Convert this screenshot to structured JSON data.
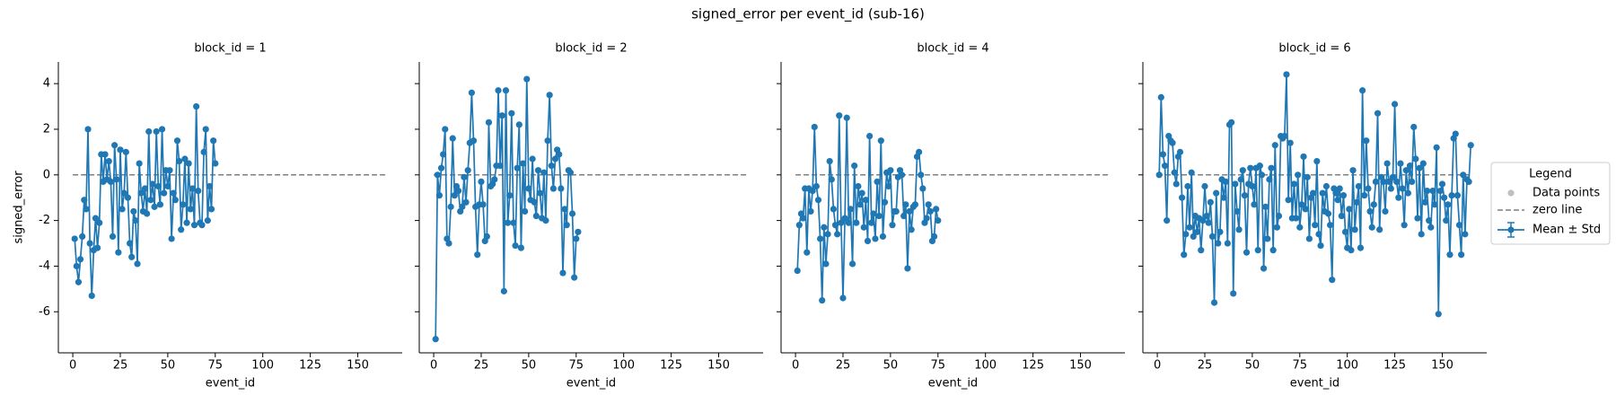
{
  "title": "signed_error per event_id (sub-16)",
  "legend": {
    "title": "Legend",
    "entries": [
      {
        "name": "Data points",
        "color": "#bfbfbf"
      },
      {
        "name": "zero line",
        "color": "#7f7f7f"
      },
      {
        "name": "Mean ± Std",
        "color": "#1f77b4"
      }
    ]
  },
  "chart_data": [
    {
      "type": "line",
      "title": "block_id = 1",
      "xlabel": "event_id",
      "ylabel": "signed_error",
      "color": "#1f77b4",
      "x": [
        1,
        2,
        3,
        4,
        5,
        6,
        7,
        8,
        9,
        10,
        11,
        12,
        13,
        14,
        15,
        16,
        17,
        18,
        19,
        20,
        21,
        22,
        23,
        24,
        25,
        26,
        27,
        28,
        29,
        30,
        31,
        32,
        33,
        34,
        35,
        36,
        37,
        38,
        39,
        40,
        41,
        42,
        43,
        44,
        45,
        46,
        47,
        48,
        49,
        50,
        51,
        52,
        53,
        54,
        55,
        56,
        57,
        58,
        59,
        60,
        61,
        62,
        63,
        64,
        65,
        66,
        67,
        68,
        69,
        70,
        71,
        72,
        73,
        74,
        75
      ],
      "values": [
        -2.8,
        -4.0,
        -4.7,
        -3.7,
        -2.7,
        -1.1,
        -1.5,
        2.0,
        -3.0,
        -5.3,
        -3.3,
        -1.9,
        -3.2,
        -2.1,
        0.9,
        -0.3,
        0.9,
        -0.2,
        0.6,
        -0.3,
        -2.7,
        1.3,
        -0.2,
        -3.4,
        1.1,
        -1.5,
        -0.8,
        1.0,
        -1.0,
        -3.0,
        -3.6,
        -1.6,
        -2.0,
        -3.9,
        0.5,
        -0.8,
        -1.6,
        -0.6,
        -1.7,
        1.9,
        -1.1,
        -0.4,
        -1.4,
        1.9,
        -0.5,
        -1.3,
        2.0,
        -0.8,
        0.2,
        -0.5,
        0.2,
        -2.8,
        -0.8,
        -1.1,
        1.5,
        0.6,
        -2.4,
        -1.3,
        0.7,
        -2.1,
        0.5,
        -1.5,
        -0.6,
        -2.2,
        3.0,
        -0.7,
        -2.1,
        -2.2,
        1.0,
        2.0,
        -2.0,
        -0.5,
        -1.5,
        1.5,
        0.5
      ],
      "xlim": [
        -7.6,
        173.4
      ],
      "ylim": [
        -7.8,
        4.95
      ],
      "xticks": [
        0,
        25,
        50,
        75,
        100,
        125,
        150
      ],
      "yticks": [
        -6,
        -4,
        -2,
        0,
        2,
        4
      ],
      "zero_line": {
        "y": 0,
        "x": [
          0,
          165
        ]
      }
    },
    {
      "type": "line",
      "title": "block_id = 2",
      "xlabel": "event_id",
      "color": "#1f77b4",
      "x": [
        1,
        2,
        3,
        4,
        5,
        6,
        7,
        8,
        9,
        10,
        11,
        12,
        13,
        14,
        15,
        16,
        17,
        18,
        19,
        20,
        21,
        22,
        23,
        24,
        25,
        26,
        27,
        28,
        29,
        30,
        31,
        32,
        33,
        34,
        35,
        36,
        37,
        38,
        39,
        40,
        41,
        42,
        43,
        44,
        45,
        46,
        47,
        48,
        49,
        50,
        51,
        52,
        53,
        54,
        55,
        56,
        57,
        58,
        59,
        60,
        61,
        62,
        63,
        64,
        65,
        66,
        67,
        68,
        69,
        70,
        71,
        72,
        73,
        74,
        75,
        76
      ],
      "values": [
        -7.2,
        0.0,
        -0.9,
        0.3,
        0.9,
        2.0,
        -2.8,
        -3.0,
        -1.4,
        1.6,
        -0.9,
        -0.5,
        -0.7,
        -1.6,
        -1.4,
        -0.1,
        -1.2,
        0.2,
        1.4,
        3.6,
        1.5,
        -1.4,
        -3.5,
        -1.3,
        -0.3,
        -1.3,
        -2.9,
        -2.7,
        2.3,
        -0.5,
        -0.4,
        -0.2,
        0.4,
        3.7,
        0.4,
        2.6,
        -5.1,
        3.7,
        -2.1,
        -0.9,
        2.7,
        -2.1,
        -3.1,
        0.3,
        2.2,
        -3.2,
        0.5,
        -1.6,
        4.2,
        -0.6,
        -1.1,
        0.7,
        -1.2,
        -1.8,
        0.2,
        -0.8,
        -1.9,
        0.1,
        -2.0,
        1.5,
        3.5,
        0.4,
        -0.6,
        0.7,
        1.1,
        0.9,
        -0.6,
        -4.3,
        -1.5,
        -2.2,
        0.2,
        0.1,
        -1.7,
        -4.5,
        -2.8,
        -2.5
      ],
      "xlim": [
        -7.6,
        173.4
      ],
      "ylim": [
        -7.8,
        4.95
      ],
      "xticks": [
        0,
        25,
        50,
        75,
        100,
        125,
        150
      ],
      "yticks": [
        -6,
        -4,
        -2,
        0,
        2,
        4
      ],
      "zero_line": {
        "y": 0,
        "x": [
          0,
          165
        ]
      }
    },
    {
      "type": "line",
      "title": "block_id = 4",
      "xlabel": "event_id",
      "color": "#1f77b4",
      "x": [
        1,
        2,
        3,
        4,
        5,
        6,
        7,
        8,
        9,
        10,
        11,
        12,
        13,
        14,
        15,
        16,
        17,
        18,
        19,
        20,
        21,
        22,
        23,
        24,
        25,
        26,
        27,
        28,
        29,
        30,
        31,
        32,
        33,
        34,
        35,
        36,
        37,
        38,
        39,
        40,
        41,
        42,
        43,
        44,
        45,
        46,
        47,
        48,
        49,
        50,
        51,
        52,
        53,
        54,
        55,
        56,
        57,
        58,
        59,
        60,
        61,
        62,
        63,
        64,
        65,
        66,
        67,
        68,
        69,
        70,
        71,
        72,
        73,
        74,
        75
      ],
      "values": [
        -4.2,
        -2.2,
        -1.7,
        -1.9,
        -0.6,
        -3.4,
        -0.6,
        -1.6,
        -0.7,
        2.1,
        -0.5,
        -1.1,
        -2.8,
        -5.5,
        -2.3,
        -3.9,
        -2.6,
        0.6,
        -0.2,
        -1.5,
        -2.2,
        -2.6,
        2.6,
        -2.1,
        -5.4,
        -1.9,
        2.5,
        -2.1,
        -1.5,
        -3.9,
        0.4,
        -2.1,
        -0.5,
        -1.3,
        -0.8,
        -2.3,
        -1.1,
        -2.9,
        1.7,
        -2.1,
        -1.7,
        -2.8,
        -0.3,
        -1.8,
        1.5,
        -2.7,
        -1.2,
        0.1,
        -0.5,
        0.2,
        -2.2,
        -1.6,
        -1.6,
        -0.1,
        0.2,
        0.0,
        -1.8,
        -1.3,
        -4.1,
        -1.6,
        -2.4,
        -1.4,
        -1.3,
        0.8,
        1.0,
        0.0,
        -0.6,
        -2.1,
        -1.9,
        -1.3,
        -1.6,
        -2.9,
        -2.7,
        -1.5,
        -2.0
      ],
      "xlim": [
        -7.6,
        173.4
      ],
      "ylim": [
        -7.8,
        4.95
      ],
      "xticks": [
        0,
        25,
        50,
        75,
        100,
        125,
        150
      ],
      "yticks": [
        -6,
        -4,
        -2,
        0,
        2,
        4
      ],
      "zero_line": {
        "y": 0,
        "x": [
          0,
          165
        ]
      }
    },
    {
      "type": "line",
      "title": "block_id = 6",
      "xlabel": "event_id",
      "color": "#1f77b4",
      "x": [
        1,
        2,
        3,
        4,
        5,
        6,
        7,
        8,
        9,
        10,
        11,
        12,
        13,
        14,
        15,
        16,
        17,
        18,
        19,
        20,
        21,
        22,
        23,
        24,
        25,
        26,
        27,
        28,
        29,
        30,
        31,
        32,
        33,
        34,
        35,
        36,
        37,
        38,
        39,
        40,
        41,
        42,
        43,
        44,
        45,
        46,
        47,
        48,
        49,
        50,
        51,
        52,
        53,
        54,
        55,
        56,
        57,
        58,
        59,
        60,
        61,
        62,
        63,
        64,
        65,
        66,
        67,
        68,
        69,
        70,
        71,
        72,
        73,
        74,
        75,
        76,
        77,
        78,
        79,
        80,
        81,
        82,
        83,
        84,
        85,
        86,
        87,
        88,
        89,
        90,
        91,
        92,
        93,
        94,
        95,
        96,
        97,
        98,
        99,
        100,
        101,
        102,
        103,
        104,
        105,
        106,
        107,
        108,
        109,
        110,
        111,
        112,
        113,
        114,
        115,
        116,
        117,
        118,
        119,
        120,
        121,
        122,
        123,
        124,
        125,
        126,
        127,
        128,
        129,
        130,
        131,
        132,
        133,
        134,
        135,
        136,
        137,
        138,
        139,
        140,
        141,
        142,
        143,
        144,
        145,
        146,
        147,
        148,
        149,
        150,
        151,
        152,
        153,
        154,
        155,
        156,
        157,
        158,
        159,
        160,
        161,
        162,
        163,
        164,
        165
      ],
      "values": [
        0.0,
        3.4,
        0.9,
        0.4,
        -2.0,
        1.7,
        1.5,
        1.4,
        0.1,
        -0.4,
        0.8,
        1.0,
        -1.0,
        -3.5,
        -2.6,
        -0.5,
        -2.3,
        0.1,
        -2.7,
        -1.8,
        -2.5,
        -1.9,
        -3.3,
        -2.0,
        -0.5,
        -1.8,
        -2.1,
        -1.2,
        -2.7,
        -5.6,
        -0.8,
        -3.0,
        -2.5,
        -0.2,
        -1.0,
        -0.3,
        -3.0,
        2.2,
        2.3,
        -5.2,
        -0.4,
        -1.6,
        -2.4,
        -0.2,
        0.2,
        -0.9,
        -3.4,
        -0.4,
        0.3,
        -0.5,
        -1.3,
        0.3,
        -3.3,
        0.4,
        0.0,
        -4.1,
        -1.4,
        -2.8,
        -0.2,
        0.3,
        -3.3,
        1.3,
        -2.3,
        -1.8,
        1.7,
        1.6,
        1.7,
        4.4,
        -1.1,
        1.4,
        -1.9,
        -0.4,
        -1.9,
        0.0,
        -2.3,
        -1.3,
        0.8,
        -1.5,
        -0.1,
        -2.8,
        -1.0,
        -0.8,
        -2.2,
        0.6,
        -2.6,
        -3.1,
        -0.8,
        -1.6,
        -0.5,
        -1.7,
        -2.2,
        -4.6,
        -0.6,
        -0.8,
        -1.1,
        -0.6,
        -1.8,
        -0.9,
        -2.5,
        -3.2,
        -1.5,
        -3.3,
        0.2,
        -2.4,
        -1.2,
        -0.5,
        -3.2,
        3.7,
        -0.9,
        1.5,
        -0.6,
        -1.6,
        -2.3,
        -1.3,
        -0.3,
        2.7,
        -2.4,
        -0.1,
        -0.3,
        -1.6,
        0.5,
        -0.3,
        -0.6,
        -0.1,
        3.1,
        -0.3,
        -1.0,
        0.5,
        -0.6,
        -2.2,
        0.2,
        -0.8,
        0.4,
        -0.3,
        2.1,
        0.7,
        -1.9,
        0.3,
        -2.6,
        0.5,
        -1.2,
        -0.7,
        -2.0,
        -2.3,
        -0.7,
        -1.3,
        1.2,
        -6.1,
        -0.7,
        -0.4,
        -1.0,
        -2.0,
        -1.3,
        -3.5,
        -0.9,
        1.6,
        1.8,
        -0.9,
        -2.2,
        -3.5,
        0.0,
        -2.6,
        -0.2,
        -0.3,
        1.3
      ],
      "xlim": [
        -7.6,
        173.4
      ],
      "ylim": [
        -7.8,
        4.95
      ],
      "xticks": [
        0,
        25,
        50,
        75,
        100,
        125,
        150
      ],
      "yticks": [
        -6,
        -4,
        -2,
        0,
        2,
        4
      ],
      "zero_line": {
        "y": 0,
        "x": [
          0,
          165
        ]
      }
    }
  ]
}
